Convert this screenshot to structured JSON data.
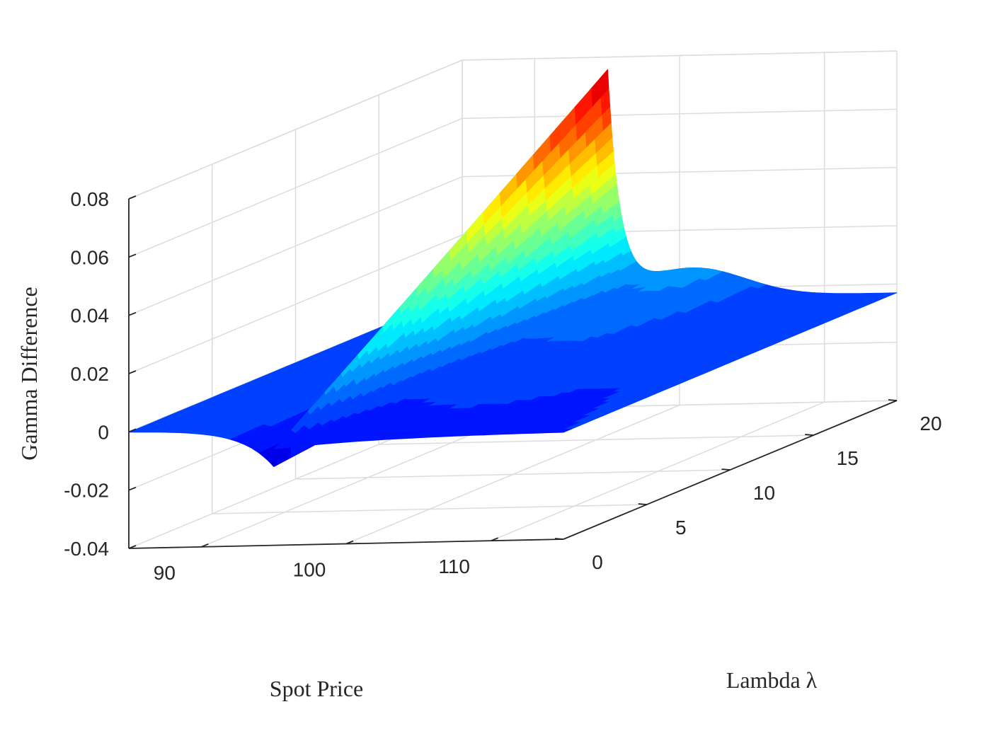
{
  "chart_data": {
    "type": "surface",
    "title": "",
    "xlabel": "Spot Price",
    "ylabel": "Lambda λ",
    "zlabel": "Gamma Difference",
    "xlim": [
      85,
      115
    ],
    "ylim": [
      0,
      20
    ],
    "zlim": [
      -0.04,
      0.08
    ],
    "x_ticks": [
      90,
      100,
      110
    ],
    "x_tick_labels": [
      "90",
      "100",
      "110"
    ],
    "y_ticks": [
      0,
      5,
      10,
      15,
      20
    ],
    "y_tick_labels": [
      "0",
      "5",
      "10",
      "15",
      "20"
    ],
    "z_ticks": [
      -0.04,
      -0.02,
      0,
      0.02,
      0.04,
      0.06,
      0.08
    ],
    "z_tick_labels": [
      "-0.04",
      "-0.02",
      "0",
      "0.02",
      "0.04",
      "0.06",
      "0.08"
    ],
    "grid": true,
    "colormap": "jet",
    "strike": 95,
    "sample_values": [
      {
        "spot": 85,
        "lambda": 0,
        "gamma_difference": 0.0
      },
      {
        "spot": 95,
        "lambda": 0,
        "gamma_difference": -0.013
      },
      {
        "spot": 95,
        "lambda": 20,
        "gamma_difference": 0.08
      },
      {
        "spot": 95,
        "lambda": 15,
        "gamma_difference": 0.06
      },
      {
        "spot": 95,
        "lambda": 10,
        "gamma_difference": 0.04
      },
      {
        "spot": 95,
        "lambda": 5,
        "gamma_difference": 0.02
      },
      {
        "spot": 98,
        "lambda": 20,
        "gamma_difference": 0.012
      },
      {
        "spot": 100,
        "lambda": 20,
        "gamma_difference": 0.004
      },
      {
        "spot": 115,
        "lambda": 0,
        "gamma_difference": -0.003
      },
      {
        "spot": 115,
        "lambda": 20,
        "gamma_difference": -0.003
      }
    ]
  }
}
